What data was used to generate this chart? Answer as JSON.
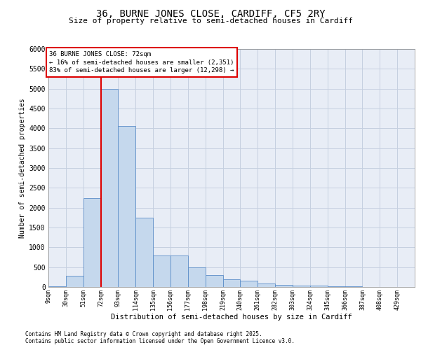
{
  "title1": "36, BURNE JONES CLOSE, CARDIFF, CF5 2RY",
  "title2": "Size of property relative to semi-detached houses in Cardiff",
  "xlabel": "Distribution of semi-detached houses by size in Cardiff",
  "ylabel": "Number of semi-detached properties",
  "footnote1": "Contains HM Land Registry data © Crown copyright and database right 2025.",
  "footnote2": "Contains public sector information licensed under the Open Government Licence v3.0.",
  "annotation_title": "36 BURNE JONES CLOSE: 72sqm",
  "annotation_line1": "← 16% of semi-detached houses are smaller (2,351)",
  "annotation_line2": "83% of semi-detached houses are larger (12,298) →",
  "property_size_bin": 72,
  "bin_starts": [
    9,
    30,
    51,
    72,
    93,
    114,
    135,
    156,
    177,
    198,
    219,
    240,
    261,
    282,
    303,
    324,
    345,
    366,
    387,
    408,
    429
  ],
  "bin_width": 21,
  "counts": [
    25,
    290,
    2250,
    5000,
    4050,
    1750,
    800,
    800,
    490,
    300,
    195,
    165,
    95,
    55,
    40,
    30,
    20,
    10,
    5,
    3,
    0
  ],
  "bar_color": "#c5d8ed",
  "bar_edge_color": "#5b8dc8",
  "red_line_color": "#dd0000",
  "grid_color": "#c5d0e0",
  "background_color": "#e8edf6",
  "ylim": [
    0,
    6000
  ],
  "yticks": [
    0,
    500,
    1000,
    1500,
    2000,
    2500,
    3000,
    3500,
    4000,
    4500,
    5000,
    5500,
    6000
  ]
}
